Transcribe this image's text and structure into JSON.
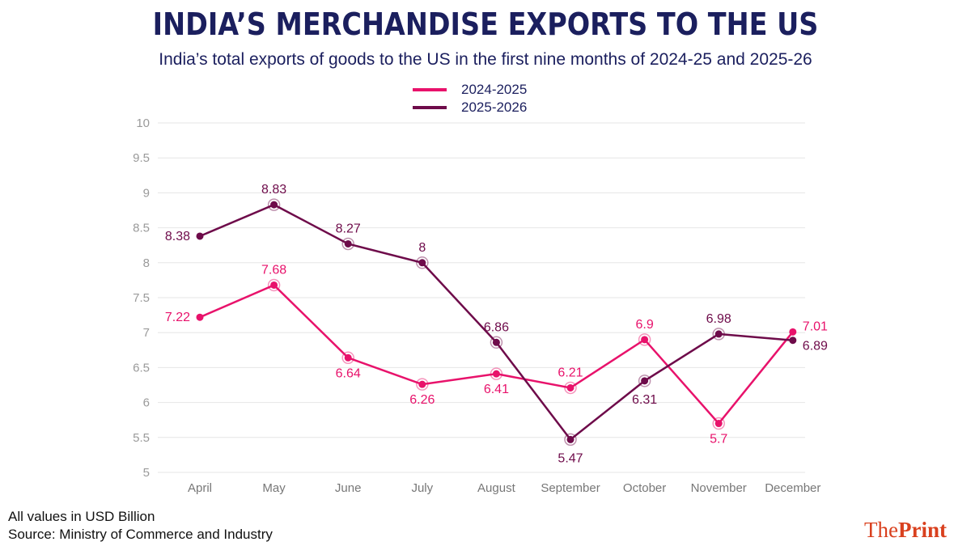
{
  "header": {
    "title": "INDIA’S MERCHANDISE EXPORTS TO THE US",
    "subtitle": "India’s total exports of goods to the US in the first nine months of 2024-25 and 2025-26"
  },
  "footer": {
    "units_note": "All values in USD Billion",
    "source": "Source: Ministry of Commerce and Industry",
    "logo_the": "The",
    "logo_print": "Print"
  },
  "chart_data": {
    "type": "line",
    "categories": [
      "April",
      "May",
      "June",
      "July",
      "August",
      "September",
      "October",
      "November",
      "December"
    ],
    "ylim": [
      5,
      10
    ],
    "yticks": [
      "5",
      "5.5",
      "6",
      "6.5",
      "7",
      "7.5",
      "8",
      "8.5",
      "9",
      "9.5",
      "10"
    ],
    "grid": true,
    "legend_placement": "top-center",
    "series": [
      {
        "name": "2024-2025",
        "color": "#e8126b",
        "values": [
          7.22,
          7.68,
          6.64,
          6.26,
          6.41,
          6.21,
          6.9,
          5.7,
          7.01
        ]
      },
      {
        "name": "2025-2026",
        "color": "#6e0b4a",
        "values": [
          8.38,
          8.83,
          8.27,
          8,
          6.86,
          5.47,
          6.31,
          6.98,
          6.89
        ]
      }
    ]
  }
}
